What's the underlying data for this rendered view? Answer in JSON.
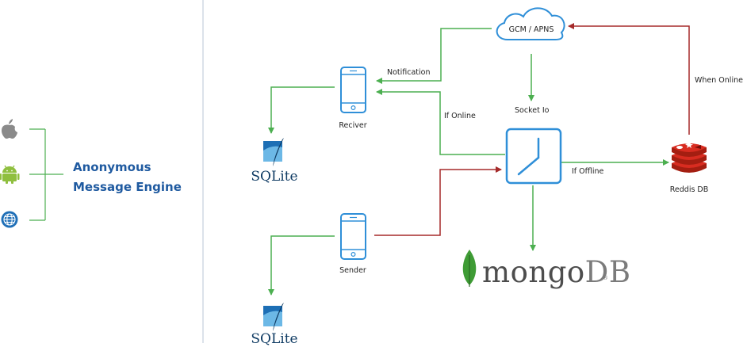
{
  "title_lines": [
    "Anonymous",
    "Message Engine"
  ],
  "platforms": [
    {
      "name": "apple-icon"
    },
    {
      "name": "android-icon"
    },
    {
      "name": "web-globe-icon"
    }
  ],
  "nodes": {
    "receiver": "Reciver",
    "sender": "Sender",
    "cloud": "GCM / APNS",
    "redis": "Reddis DB",
    "sqlite_top": "SQLite",
    "sqlite_bottom": "SQLite",
    "mongo_main": "mongo",
    "mongo_db": "DB",
    "mongo_reg": "®"
  },
  "edge_labels": {
    "notification": "Notification",
    "if_online": "If Online",
    "socket_io": "Socket Io",
    "if_offline": "If Offline",
    "when_online": "When Online"
  },
  "colors": {
    "title": "#1f5aa0",
    "green_arrow": "#4caf50",
    "red_arrow": "#a52a2a",
    "phone_blue": "#2f8fd8",
    "cloud_blue": "#2f8fd8",
    "redis_red": "#d6352b",
    "mongo_leaf": "#3f9c35",
    "divider": "#b8c6d6"
  }
}
